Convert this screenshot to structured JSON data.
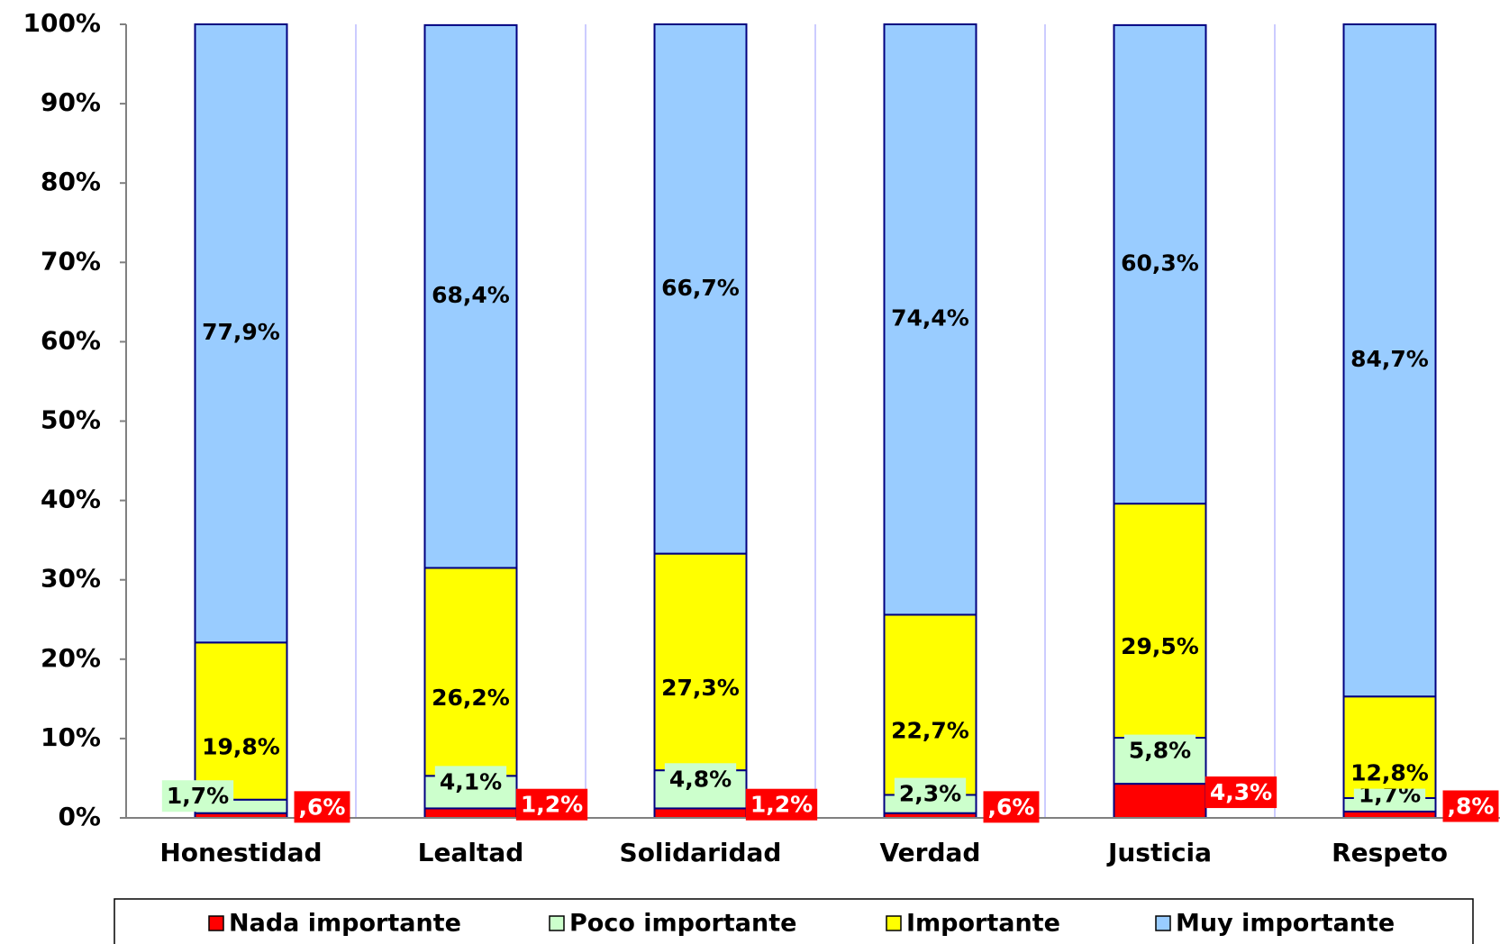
{
  "chart_data": {
    "type": "stacked_bar",
    "categories": [
      "Honestidad",
      "Lealtad",
      "Solidaridad",
      "Verdad",
      "Justicia",
      "Respeto"
    ],
    "series": [
      {
        "name": "Nada importante",
        "color": "#ff0000",
        "values": [
          0.6,
          1.2,
          1.2,
          0.6,
          4.3,
          0.8
        ],
        "value_labels": [
          ",6%",
          "1,2%",
          "1,2%",
          ",6%",
          "4,3%",
          ",8%"
        ]
      },
      {
        "name": "Poco importante",
        "color": "#ccffcc",
        "values": [
          1.7,
          4.1,
          4.8,
          2.3,
          5.8,
          1.7
        ],
        "value_labels": [
          "1,7%",
          "4,1%",
          "4,8%",
          "2,3%",
          "5,8%",
          "1,7%"
        ]
      },
      {
        "name": "Importante",
        "color": "#ffff00",
        "values": [
          19.8,
          26.2,
          27.3,
          22.7,
          29.5,
          12.8
        ],
        "value_labels": [
          "19,8%",
          "26,2%",
          "27,3%",
          "22,7%",
          "29,5%",
          "12,8%"
        ]
      },
      {
        "name": "Muy importante",
        "color": "#99ccff",
        "values": [
          77.9,
          68.4,
          66.7,
          74.4,
          60.3,
          84.7
        ],
        "value_labels": [
          "77,9%",
          "68,4%",
          "66,7%",
          "74,4%",
          "60,3%",
          "84,7%"
        ]
      }
    ],
    "ylim": [
      0,
      100
    ],
    "yticks": [
      {
        "value": 0,
        "label": "0%"
      },
      {
        "value": 10,
        "label": "10%"
      },
      {
        "value": 20,
        "label": "20%"
      },
      {
        "value": 30,
        "label": "30%"
      },
      {
        "value": 40,
        "label": "40%"
      },
      {
        "value": 50,
        "label": "50%"
      },
      {
        "value": 60,
        "label": "60%"
      },
      {
        "value": 70,
        "label": "70%"
      },
      {
        "value": 80,
        "label": "80%"
      },
      {
        "value": 90,
        "label": "90%"
      },
      {
        "value": 100,
        "label": "100%"
      }
    ],
    "legend": "bottom"
  }
}
